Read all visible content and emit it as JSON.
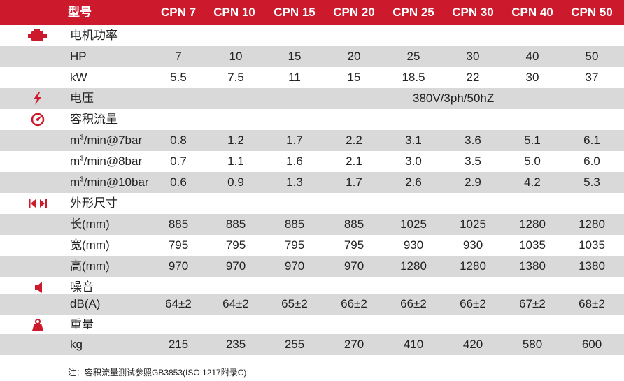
{
  "header": {
    "model_label": "型号",
    "models": [
      "CPN 7",
      "CPN 10",
      "CPN 15",
      "CPN 20",
      "CPN 25",
      "CPN 30",
      "CPN 40",
      "CPN 50"
    ]
  },
  "sections": {
    "power": {
      "title": "电机功率",
      "hp_label": "HP",
      "hp": [
        "7",
        "10",
        "15",
        "20",
        "25",
        "30",
        "40",
        "50"
      ],
      "kw_label": "kW",
      "kw": [
        "5.5",
        "7.5",
        "11",
        "15",
        "18.5",
        "22",
        "30",
        "37"
      ]
    },
    "voltage": {
      "title": "电压",
      "value": "380V/3ph/50hZ"
    },
    "flow": {
      "title": "容积流量",
      "unit_base": "m",
      "unit_sup": "3",
      "r7_suffix": "/min@7bar",
      "r7": [
        "0.8",
        "1.2",
        "1.7",
        "2.2",
        "3.1",
        "3.6",
        "5.1",
        "6.1"
      ],
      "r8_suffix": "/min@8bar",
      "r8": [
        "0.7",
        "1.1",
        "1.6",
        "2.1",
        "3.0",
        "3.5",
        "5.0",
        "6.0"
      ],
      "r10_suffix": "/min@10bar",
      "r10": [
        "0.6",
        "0.9",
        "1.3",
        "1.7",
        "2.6",
        "2.9",
        "4.2",
        "5.3"
      ]
    },
    "dimensions": {
      "title": "外形尺寸",
      "length_label": "长(mm)",
      "length": [
        "885",
        "885",
        "885",
        "885",
        "1025",
        "1025",
        "1280",
        "1280"
      ],
      "width_label": "宽(mm)",
      "width": [
        "795",
        "795",
        "795",
        "795",
        "930",
        "930",
        "1035",
        "1035"
      ],
      "height_label": "高(mm)",
      "height": [
        "970",
        "970",
        "970",
        "970",
        "1280",
        "1280",
        "1380",
        "1380"
      ]
    },
    "noise": {
      "title": "噪音",
      "label": "dB(A)",
      "values": [
        "64±2",
        "64±2",
        "65±2",
        "66±2",
        "66±2",
        "66±2",
        "67±2",
        "68±2"
      ]
    },
    "weight": {
      "title": "重量",
      "label": "kg",
      "values": [
        "215",
        "235",
        "255",
        "270",
        "410",
        "420",
        "580",
        "600"
      ]
    }
  },
  "note": "注：容积流量测试参照GB3853(ISO 1217附录C)",
  "colors": {
    "accent": "#cc1a2c",
    "row_gray": "#d9d9d9"
  },
  "icons": [
    "motor-icon",
    "lightning-icon",
    "gauge-icon",
    "dimensions-icon",
    "speaker-icon",
    "weight-icon"
  ]
}
